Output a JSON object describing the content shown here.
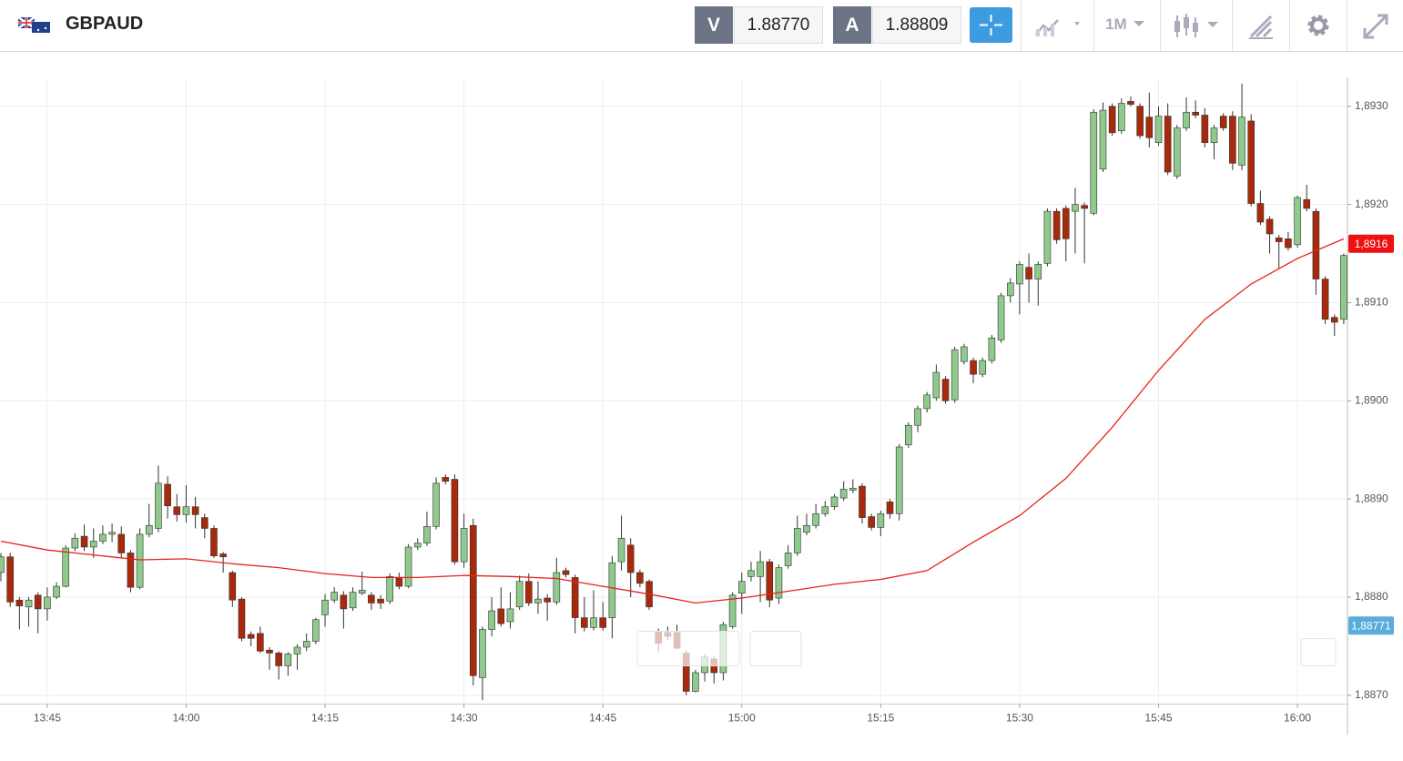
{
  "header": {
    "symbol": "GBPAUD",
    "sell_label": "V",
    "sell_price": "1.88770",
    "buy_label": "A",
    "buy_price": "1.88809",
    "timeframe": "1M"
  },
  "chart_data": {
    "type": "candlestick",
    "up_color": "#8fc98b",
    "down_color": "#a8290c",
    "wick_color": "#333333",
    "x": [
      820,
      821,
      822,
      823,
      824,
      825,
      826,
      827,
      828,
      829,
      830,
      831,
      832,
      833,
      834,
      835,
      836,
      837,
      838,
      839,
      840,
      841,
      842,
      843,
      844,
      845,
      846,
      847,
      848,
      849,
      850,
      851,
      852,
      853,
      854,
      855,
      856,
      857,
      858,
      859,
      860,
      861,
      862,
      863,
      864,
      865,
      866,
      867,
      868,
      869,
      870,
      871,
      872,
      873,
      874,
      875,
      876,
      877,
      878,
      879,
      880,
      881,
      882,
      883,
      884,
      885,
      886,
      887,
      888,
      889,
      890,
      891,
      892,
      893,
      894,
      895,
      896,
      897,
      898,
      899,
      900,
      901,
      902,
      903,
      904,
      905,
      906,
      907,
      908,
      909,
      910,
      911,
      912,
      913,
      914,
      915,
      916,
      917,
      918,
      919,
      920,
      921,
      922,
      923,
      924,
      925,
      926,
      927,
      928,
      929,
      930,
      931,
      932,
      933,
      934,
      935,
      936,
      937,
      938,
      939,
      940,
      941,
      942,
      943,
      944,
      945,
      946,
      947,
      948,
      949,
      950,
      951,
      952,
      953,
      954,
      955,
      956,
      957,
      958,
      959,
      960,
      961,
      962,
      963,
      964,
      965
    ],
    "open": [
      1.88825,
      1.88841,
      1.88797,
      1.8879,
      1.88802,
      1.88788,
      1.888,
      1.88811,
      1.8885,
      1.88862,
      1.88851,
      1.88857,
      1.88864,
      1.88864,
      1.88845,
      1.8881,
      1.88864,
      1.8887,
      1.88915,
      1.88892,
      1.88884,
      1.88892,
      1.88881,
      1.8887,
      1.88844,
      1.88825,
      1.88798,
      1.88762,
      1.88763,
      1.88746,
      1.88743,
      1.8873,
      1.88742,
      1.88749,
      1.88755,
      1.88782,
      1.88797,
      1.88802,
      1.88789,
      1.88804,
      1.88802,
      1.88798,
      1.88796,
      1.8882,
      1.88811,
      1.88851,
      1.88855,
      1.88872,
      1.88922,
      1.8892,
      1.88836,
      1.88873,
      1.88718,
      1.88767,
      1.88788,
      1.88775,
      1.8879,
      1.88816,
      1.88794,
      1.88799,
      1.88795,
      1.88827,
      1.8882,
      1.88779,
      1.88769,
      1.88779,
      1.88779,
      1.88836,
      1.88853,
      1.88825,
      1.88816,
      1.88765,
      1.88764,
      1.88764,
      1.88743,
      1.88704,
      1.88723,
      1.88737,
      1.88723,
      1.8877,
      1.88804,
      1.88821,
      1.88821,
      1.88836,
      1.88799,
      1.88832,
      1.88845,
      1.88866,
      1.88873,
      1.88885,
      1.88892,
      1.88901,
      1.88909,
      1.88913,
      1.88882,
      1.88871,
      1.88897,
      1.88885,
      1.88955,
      1.88975,
      1.88992,
      1.89003,
      1.89022,
      1.89001,
      1.8904,
      1.89041,
      1.89027,
      1.89041,
      1.89062,
      1.89107,
      1.89119,
      1.89136,
      1.89124,
      1.8914,
      1.89193,
      1.89196,
      1.89193,
      1.89199,
      1.89191,
      1.89236,
      1.893,
      1.89275,
      1.89305,
      1.893,
      1.89289,
      1.89263,
      1.8929,
      1.89229,
      1.89278,
      1.89294,
      1.89291,
      1.89263,
      1.8929,
      1.8929,
      1.8924,
      1.89285,
      1.89201,
      1.89185,
      1.89166,
      1.89165,
      1.89159,
      1.89205,
      1.89193,
      1.89124,
      1.89085,
      1.89083
    ],
    "high": [
      1.88845,
      1.88845,
      1.888,
      1.888,
      1.88805,
      1.8881,
      1.88815,
      1.88853,
      1.88865,
      1.88874,
      1.8887,
      1.88873,
      1.88875,
      1.88872,
      1.88848,
      1.8887,
      1.88895,
      1.88934,
      1.88923,
      1.88905,
      1.88914,
      1.88902,
      1.88885,
      1.88873,
      1.88846,
      1.88827,
      1.888,
      1.88765,
      1.8877,
      1.88749,
      1.88745,
      1.88744,
      1.88752,
      1.88763,
      1.88779,
      1.88803,
      1.8881,
      1.88806,
      1.8881,
      1.88826,
      1.88805,
      1.88802,
      1.88824,
      1.88825,
      1.88854,
      1.8886,
      1.88887,
      1.88922,
      1.88925,
      1.88925,
      1.88885,
      1.8888,
      1.8877,
      1.888,
      1.8881,
      1.88805,
      1.88822,
      1.88824,
      1.88816,
      1.88803,
      1.8884,
      1.8883,
      1.88823,
      1.888,
      1.88807,
      1.88795,
      1.88842,
      1.88883,
      1.8886,
      1.88828,
      1.88818,
      1.88768,
      1.8877,
      1.88772,
      1.88746,
      1.88726,
      1.88742,
      1.8874,
      1.88775,
      1.88805,
      1.88825,
      1.88836,
      1.88847,
      1.88839,
      1.88833,
      1.88853,
      1.88883,
      1.88885,
      1.88895,
      1.88898,
      1.88905,
      1.88918,
      1.8892,
      1.88916,
      1.88885,
      1.88888,
      1.889,
      1.88956,
      1.88978,
      1.88995,
      1.89009,
      1.89037,
      1.89025,
      1.89055,
      1.89058,
      1.89044,
      1.89044,
      1.89067,
      1.8911,
      1.89125,
      1.89142,
      1.8915,
      1.89142,
      1.89196,
      1.89196,
      1.89199,
      1.89217,
      1.89202,
      1.89297,
      1.89304,
      1.89303,
      1.89308,
      1.8931,
      1.89303,
      1.89314,
      1.893,
      1.89303,
      1.89281,
      1.89309,
      1.89306,
      1.89298,
      1.89281,
      1.89293,
      1.89295,
      1.89323,
      1.89292,
      1.89214,
      1.89188,
      1.89169,
      1.89172,
      1.89209,
      1.8922,
      1.89196,
      1.89127,
      1.89088,
      1.8915
    ],
    "low": [
      1.88816,
      1.8879,
      1.88767,
      1.8877,
      1.88763,
      1.88776,
      1.88798,
      1.8881,
      1.88847,
      1.88847,
      1.8884,
      1.88854,
      1.88856,
      1.8884,
      1.88805,
      1.88808,
      1.88861,
      1.88866,
      1.8888,
      1.88877,
      1.88876,
      1.8887,
      1.8886,
      1.8884,
      1.88825,
      1.8879,
      1.88755,
      1.8875,
      1.88743,
      1.88726,
      1.88716,
      1.8872,
      1.88726,
      1.88745,
      1.88752,
      1.8877,
      1.88794,
      1.88768,
      1.88786,
      1.88802,
      1.88787,
      1.88788,
      1.88793,
      1.88808,
      1.88809,
      1.88848,
      1.88852,
      1.88869,
      1.88915,
      1.88833,
      1.8883,
      1.8871,
      1.88695,
      1.8876,
      1.8877,
      1.88768,
      1.88787,
      1.88791,
      1.88783,
      1.88776,
      1.88792,
      1.8882,
      1.88763,
      1.88765,
      1.88766,
      1.88766,
      1.88758,
      1.88827,
      1.888,
      1.8881,
      1.88787,
      1.88744,
      1.88756,
      1.88747,
      1.887,
      1.88703,
      1.88714,
      1.88712,
      1.88715,
      1.88768,
      1.88783,
      1.88816,
      1.88795,
      1.8879,
      1.88793,
      1.88829,
      1.88842,
      1.88863,
      1.8887,
      1.88882,
      1.88889,
      1.88898,
      1.88906,
      1.88875,
      1.88868,
      1.88862,
      1.8888,
      1.88878,
      1.88952,
      1.88968,
      1.88988,
      1.89,
      1.88997,
      1.88998,
      1.89037,
      1.89018,
      1.89024,
      1.89038,
      1.89059,
      1.891,
      1.89088,
      1.891,
      1.89097,
      1.89137,
      1.8916,
      1.89142,
      1.8915,
      1.8914,
      1.89189,
      1.89233,
      1.8927,
      1.89272,
      1.893,
      1.89267,
      1.89258,
      1.8926,
      1.8923,
      1.89226,
      1.89275,
      1.89288,
      1.89258,
      1.89246,
      1.89275,
      1.89235,
      1.89235,
      1.89198,
      1.89179,
      1.8915,
      1.89135,
      1.89153,
      1.89156,
      1.89193,
      1.89108,
      1.89078,
      1.89066,
      1.89078
    ],
    "close": [
      1.88841,
      1.88795,
      1.88791,
      1.88797,
      1.88788,
      1.888,
      1.88811,
      1.8885,
      1.8886,
      1.88851,
      1.88857,
      1.88864,
      1.88866,
      1.88845,
      1.8881,
      1.88864,
      1.88873,
      1.88916,
      1.88893,
      1.88884,
      1.88892,
      1.88884,
      1.8887,
      1.88842,
      1.88841,
      1.88797,
      1.88758,
      1.88758,
      1.88745,
      1.88743,
      1.8873,
      1.88742,
      1.88749,
      1.88755,
      1.88777,
      1.88797,
      1.88805,
      1.88788,
      1.88805,
      1.88807,
      1.88794,
      1.88794,
      1.88821,
      1.88811,
      1.88851,
      1.88855,
      1.88872,
      1.88916,
      1.88918,
      1.88836,
      1.8887,
      1.8872,
      1.88767,
      1.88786,
      1.88773,
      1.88788,
      1.88816,
      1.88794,
      1.88798,
      1.88795,
      1.88825,
      1.88823,
      1.88779,
      1.88769,
      1.88779,
      1.88769,
      1.88835,
      1.8886,
      1.88825,
      1.88814,
      1.8879,
      1.88753,
      1.8876,
      1.88748,
      1.88704,
      1.88723,
      1.88739,
      1.88723,
      1.88772,
      1.88802,
      1.88816,
      1.88827,
      1.88836,
      1.88797,
      1.8883,
      1.88845,
      1.8887,
      1.88873,
      1.88885,
      1.88892,
      1.88902,
      1.8891,
      1.88911,
      1.88881,
      1.88871,
      1.88885,
      1.88885,
      1.88953,
      1.88975,
      1.88992,
      1.89006,
      1.89029,
      1.89,
      1.89052,
      1.89055,
      1.89027,
      1.89041,
      1.89064,
      1.89107,
      1.8912,
      1.89139,
      1.89124,
      1.89139,
      1.89193,
      1.89164,
      1.89165,
      1.892,
      1.89196,
      1.89294,
      1.89296,
      1.89273,
      1.89303,
      1.89302,
      1.8927,
      1.89268,
      1.8929,
      1.89233,
      1.89278,
      1.89294,
      1.89291,
      1.89263,
      1.89278,
      1.89278,
      1.89242,
      1.89289,
      1.89201,
      1.89182,
      1.8917,
      1.89162,
      1.89156,
      1.89207,
      1.89196,
      1.89124,
      1.89083,
      1.8908,
      1.89148
    ],
    "moving_average": {
      "color": "#e8221c",
      "x": [
        820,
        825,
        830,
        835,
        840,
        845,
        850,
        855,
        860,
        865,
        870,
        875,
        880,
        885,
        890,
        895,
        900,
        905,
        910,
        915,
        920,
        925,
        930,
        935,
        940,
        945,
        950,
        955,
        960,
        965
      ],
      "values": [
        1.88857,
        1.88848,
        1.88843,
        1.88838,
        1.88839,
        1.88834,
        1.8883,
        1.88824,
        1.8882,
        1.8882,
        1.88822,
        1.88821,
        1.88819,
        1.88811,
        1.88803,
        1.88794,
        1.88799,
        1.88806,
        1.88813,
        1.88818,
        1.88827,
        1.88856,
        1.88883,
        1.88921,
        1.88973,
        1.89031,
        1.89083,
        1.89119,
        1.89145,
        1.89165
      ]
    },
    "ma_tag": {
      "value": 1.8916,
      "label": "1,8916",
      "color": "#ee1111"
    },
    "price_tag": {
      "value": 1.88771,
      "label": "1,88771",
      "color": "#5aacdc"
    },
    "xlim": [
      819.9,
      965.4
    ],
    "xticks": [
      {
        "value": 825,
        "label": "13:45"
      },
      {
        "value": 840,
        "label": "14:00"
      },
      {
        "value": 855,
        "label": "14:15"
      },
      {
        "value": 870,
        "label": "14:30"
      },
      {
        "value": 885,
        "label": "14:45"
      },
      {
        "value": 900,
        "label": "15:00"
      },
      {
        "value": 915,
        "label": "15:15"
      },
      {
        "value": 930,
        "label": "15:30"
      },
      {
        "value": 945,
        "label": "15:45"
      },
      {
        "value": 960,
        "label": "16:00"
      }
    ],
    "ylim": [
      1.88691,
      1.89329
    ],
    "yticks": [
      {
        "value": 1.887,
        "label": "1,8870"
      },
      {
        "value": 1.888,
        "label": "1,8880"
      },
      {
        "value": 1.889,
        "label": "1,8890"
      },
      {
        "value": 1.89,
        "label": "1,8900"
      },
      {
        "value": 1.891,
        "label": "1,8910"
      },
      {
        "value": 1.892,
        "label": "1,8920"
      },
      {
        "value": 1.893,
        "label": "1,8930"
      }
    ],
    "grid": true
  }
}
